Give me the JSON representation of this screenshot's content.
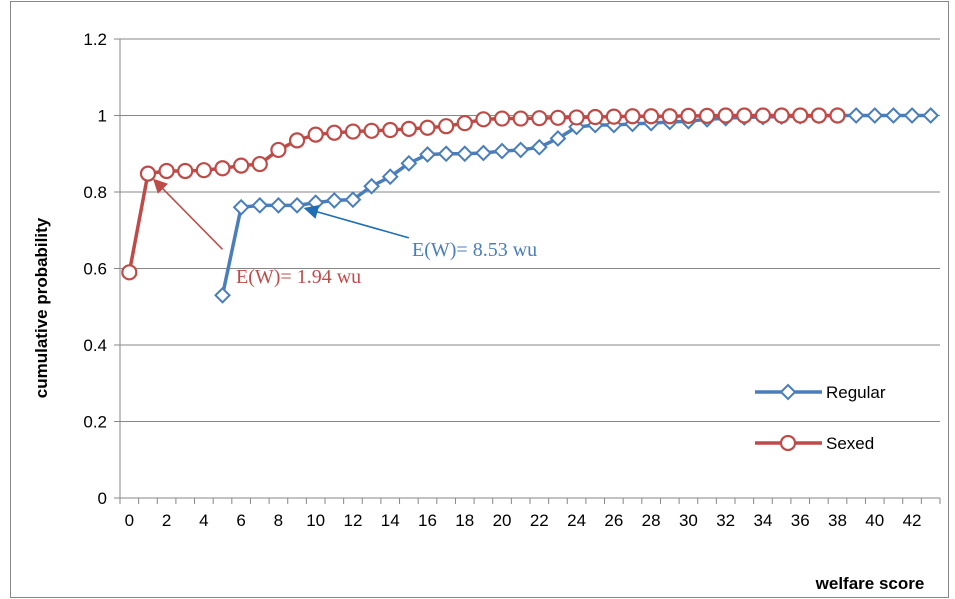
{
  "chart_data": {
    "type": "line",
    "xlabel": "welfare score",
    "ylabel": "cumulative probability",
    "ylim": [
      0,
      1.2
    ],
    "y_ticks": [
      "0",
      "0.2",
      "0.4",
      "0.6",
      "0.8",
      "1",
      "1.2"
    ],
    "x_range": [
      0,
      43
    ],
    "x_tick_labels": [
      "0",
      "2",
      "4",
      "6",
      "8",
      "10",
      "12",
      "14",
      "16",
      "18",
      "20",
      "22",
      "24",
      "26",
      "28",
      "30",
      "32",
      "34",
      "36",
      "38",
      "40",
      "42"
    ],
    "grid": "horizontal",
    "legend_position": "right",
    "series": [
      {
        "name": "Regular",
        "color": "#4a7ebb",
        "marker": "diamond",
        "x": [
          5,
          6,
          7,
          8,
          9,
          10,
          11,
          12,
          13,
          14,
          15,
          16,
          17,
          18,
          19,
          20,
          21,
          22,
          23,
          24,
          25,
          26,
          27,
          28,
          29,
          30,
          31,
          32,
          33,
          34,
          35,
          36,
          37,
          38,
          39,
          40,
          41,
          42,
          43
        ],
        "y": [
          0.53,
          0.76,
          0.765,
          0.765,
          0.765,
          0.772,
          0.778,
          0.78,
          0.815,
          0.84,
          0.875,
          0.898,
          0.9,
          0.9,
          0.902,
          0.907,
          0.91,
          0.917,
          0.94,
          0.97,
          0.975,
          0.975,
          0.978,
          0.98,
          0.983,
          0.985,
          0.99,
          0.993,
          0.995,
          0.996,
          0.997,
          0.998,
          0.999,
          1.0,
          1.0,
          1.0,
          1.0,
          1.0,
          1.0
        ]
      },
      {
        "name": "Sexed",
        "color": "#be4b48",
        "marker": "circle",
        "x": [
          0,
          1,
          2,
          3,
          4,
          5,
          6,
          7,
          8,
          9,
          10,
          11,
          12,
          13,
          14,
          15,
          16,
          17,
          18,
          19,
          20,
          21,
          22,
          23,
          24,
          25,
          26,
          27,
          28,
          29,
          30,
          31,
          32,
          33,
          34,
          35,
          36,
          37,
          38
        ],
        "y": [
          0.59,
          0.848,
          0.855,
          0.855,
          0.857,
          0.862,
          0.869,
          0.873,
          0.91,
          0.935,
          0.95,
          0.955,
          0.958,
          0.96,
          0.962,
          0.965,
          0.968,
          0.972,
          0.98,
          0.99,
          0.992,
          0.992,
          0.993,
          0.994,
          0.995,
          0.996,
          0.997,
          0.998,
          0.998,
          0.998,
          0.999,
          0.999,
          1.0,
          1.0,
          1.0,
          1.0,
          1.0,
          1.0,
          1.0
        ]
      }
    ],
    "annotations": [
      {
        "text": "E(W)= 1.94 wu",
        "color": "#be4b48",
        "arrow_to": [
          1,
          0.848
        ],
        "arrow_from": [
          5,
          0.65
        ]
      },
      {
        "text": "E(W)= 8.53 wu",
        "color": "#4a7ebb",
        "arrow_to": [
          9,
          0.765
        ],
        "arrow_from": [
          15,
          0.68
        ]
      }
    ]
  }
}
